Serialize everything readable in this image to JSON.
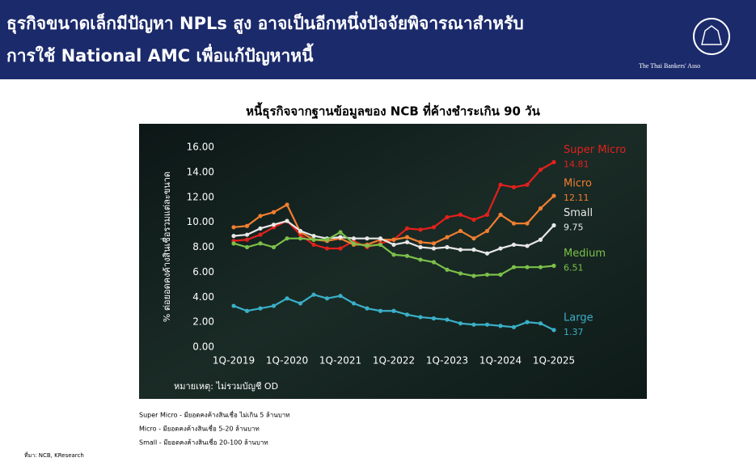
{
  "header": {
    "title_lines": [
      "ธุรกิจขนาดเล็กมีปัญหา NPLs สูง อาจเป็นอีกหนึ่งปัจจัยพิจารณาสำหรับ",
      "การใช้ National AMC เพื่อแก้ปัญหาหนี้"
    ],
    "logo_text": "The Thai Bankers' Asso"
  },
  "chart_data": {
    "type": "line",
    "title": "หนี้ธุรกิจจากฐานข้อมูลของ NCB ที่ค้างชำระเกิน 90 วัน",
    "y_label": "% ต่อยอดคงค้างสินเชื่อรวมแต่ละขนาด",
    "note": "หมายเหตุ: ไม่รวมบัญชี OD",
    "categories": [
      "1Q-2019",
      null,
      null,
      null,
      "1Q-2020",
      null,
      null,
      null,
      "1Q-2021",
      null,
      null,
      null,
      "1Q-2022",
      null,
      null,
      null,
      "1Q-2023",
      null,
      null,
      null,
      "1Q-2024",
      null,
      null,
      null,
      "1Q-2025"
    ],
    "ylim": [
      0,
      16
    ],
    "yticks": [
      {
        "value": 0,
        "label": "0.00"
      },
      {
        "value": 2,
        "label": "2.00"
      },
      {
        "value": 4,
        "label": "4.00"
      },
      {
        "value": 6,
        "label": "6.00"
      },
      {
        "value": 8,
        "label": "8.00"
      },
      {
        "value": 10,
        "label": "10.00"
      },
      {
        "value": 12,
        "label": "12.00"
      },
      {
        "value": 14,
        "label": "14.00"
      },
      {
        "value": 16,
        "label": "16.00"
      }
    ],
    "grid": false,
    "series": [
      {
        "name": "Super Micro",
        "color": "#e3201c",
        "values": [
          8.5,
          8.6,
          9.0,
          9.6,
          10.1,
          9.0,
          8.2,
          7.9,
          7.9,
          8.5,
          8.0,
          8.3,
          8.6,
          9.5,
          9.4,
          9.6,
          10.4,
          10.6,
          10.2,
          10.6,
          13.0,
          12.8,
          13.0,
          14.2,
          14.81
        ]
      },
      {
        "name": "Micro",
        "color": "#f07f30",
        "values": [
          9.6,
          9.7,
          10.5,
          10.8,
          11.4,
          9.2,
          8.6,
          8.5,
          8.7,
          8.2,
          8.2,
          8.6,
          8.6,
          8.8,
          8.4,
          8.3,
          8.8,
          9.3,
          8.7,
          9.3,
          10.6,
          9.9,
          9.9,
          11.1,
          12.11
        ]
      },
      {
        "name": "Small",
        "color": "#e8e8e8",
        "values": [
          8.9,
          9.0,
          9.5,
          9.8,
          10.1,
          9.3,
          8.9,
          8.7,
          8.8,
          8.7,
          8.7,
          8.7,
          8.2,
          8.4,
          8.0,
          7.9,
          8.0,
          7.8,
          7.8,
          7.5,
          7.9,
          8.2,
          8.1,
          8.6,
          9.75
        ]
      },
      {
        "name": "Medium",
        "color": "#7cc04a",
        "values": [
          8.3,
          8.0,
          8.3,
          8.0,
          8.7,
          8.7,
          8.6,
          8.6,
          9.2,
          8.3,
          8.1,
          8.2,
          7.4,
          7.3,
          7.0,
          6.8,
          6.2,
          5.9,
          5.7,
          5.8,
          5.8,
          6.4,
          6.4,
          6.4,
          6.51
        ]
      },
      {
        "name": "Large",
        "color": "#3ab0c8",
        "values": [
          3.3,
          2.9,
          3.1,
          3.3,
          3.9,
          3.5,
          4.2,
          3.9,
          4.1,
          3.5,
          3.1,
          2.9,
          2.9,
          2.6,
          2.4,
          2.3,
          2.2,
          1.9,
          1.8,
          1.8,
          1.7,
          1.6,
          2.0,
          1.9,
          1.37
        ]
      }
    ]
  },
  "footnotes": [
    "Super Micro - มียอดคงค้างสินเชื่อ ไม่เกิน 5 ล้านบาท",
    "Micro - มียอดคงค้างสินเชื่อ 5-20 ล้านบาท",
    "Small - มียอดคงค้างสินเชื่อ 20-100 ล้านบาท"
  ],
  "source": "ที่มา: NCB, KResearch"
}
